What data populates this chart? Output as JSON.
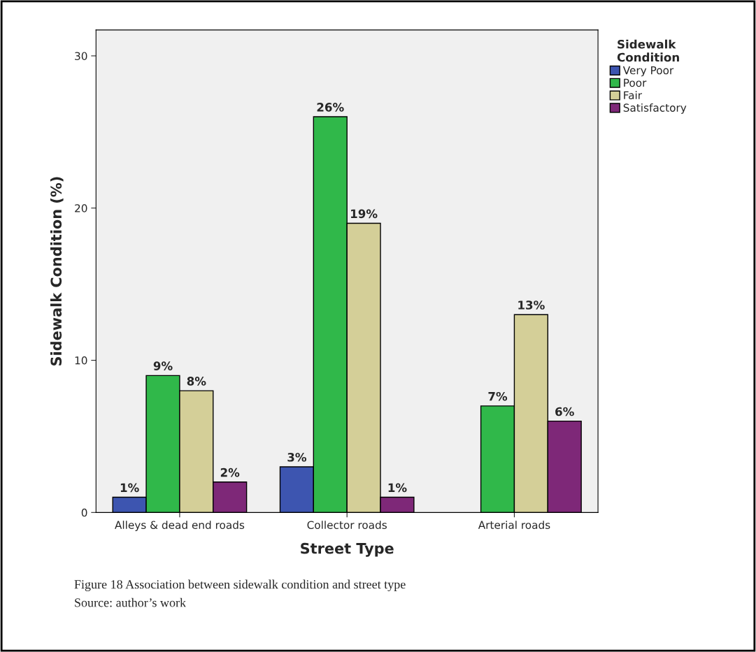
{
  "chart_data": {
    "type": "bar",
    "xlabel": "Street Type",
    "ylabel": "Sidewalk Condition (%)",
    "legend_title": "Sidewalk Condition",
    "categories": [
      "Alleys & dead end roads",
      "Collector roads",
      "Arterial roads"
    ],
    "series": [
      {
        "name": "Very Poor",
        "color": "#3d55b0",
        "values": [
          1,
          3,
          null
        ],
        "value_labels": [
          "1%",
          "3%",
          null
        ]
      },
      {
        "name": "Poor",
        "color": "#30b84a",
        "values": [
          9,
          26,
          7
        ],
        "value_labels": [
          "9%",
          "26%",
          "7%"
        ]
      },
      {
        "name": "Fair",
        "color": "#d4cf98",
        "values": [
          8,
          19,
          13
        ],
        "value_labels": [
          "8%",
          "19%",
          "13%"
        ]
      },
      {
        "name": "Satisfactory",
        "color": "#7e2878",
        "values": [
          2,
          1,
          6
        ],
        "value_labels": [
          "2%",
          "1%",
          "6%"
        ]
      }
    ],
    "ylim": [
      0,
      31.7
    ],
    "yticks": [
      0,
      10,
      20,
      30
    ],
    "grid": false,
    "legend": "top right",
    "annotations": [
      "Figure 18 Association between sidewalk condition and street type",
      "Source: author’s work"
    ]
  }
}
